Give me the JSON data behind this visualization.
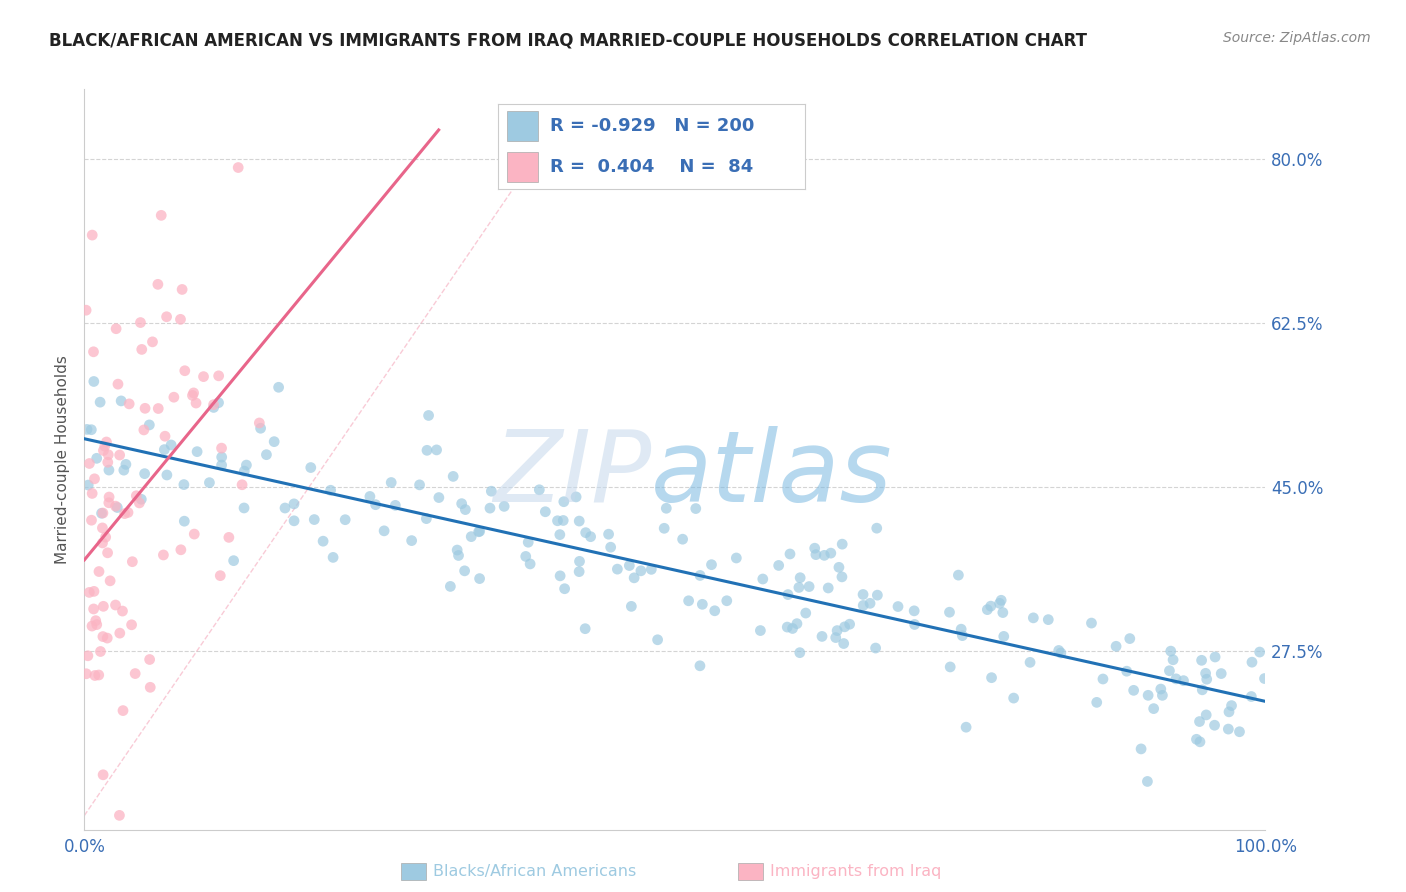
{
  "title": "BLACK/AFRICAN AMERICAN VS IMMIGRANTS FROM IRAQ MARRIED-COUPLE HOUSEHOLDS CORRELATION CHART",
  "source": "Source: ZipAtlas.com",
  "ylabel": "Married-couple Households",
  "legend_label1": "Blacks/African Americans",
  "legend_label2": "Immigrants from Iraq",
  "R1": -0.929,
  "N1": 200,
  "R2": 0.404,
  "N2": 84,
  "blue_scatter_color": "#9ecae1",
  "pink_scatter_color": "#fbb4c3",
  "blue_line_color": "#2171b5",
  "pink_line_color": "#e8658a",
  "diag_color": "#f4a0b5",
  "watermark_zip_color": "#c8d8e8",
  "watermark_atlas_color": "#a0c4e8",
  "ytick_labels": [
    "27.5%",
    "45.0%",
    "62.5%",
    "80.0%"
  ],
  "ytick_values": [
    0.275,
    0.45,
    0.625,
    0.8
  ],
  "xtick_labels": [
    "0.0%",
    "100.0%"
  ],
  "xlim": [
    0.0,
    1.0
  ],
  "ylim": [
    0.085,
    0.875
  ],
  "title_fontsize": 12,
  "axis_label_fontsize": 11,
  "tick_fontsize": 12,
  "source_fontsize": 10,
  "blue_seed": 12,
  "pink_seed": 99,
  "background_color": "#ffffff",
  "grid_color": "#d0d0d0",
  "axis_color": "#cccccc",
  "text_color": "#3a6eb5"
}
